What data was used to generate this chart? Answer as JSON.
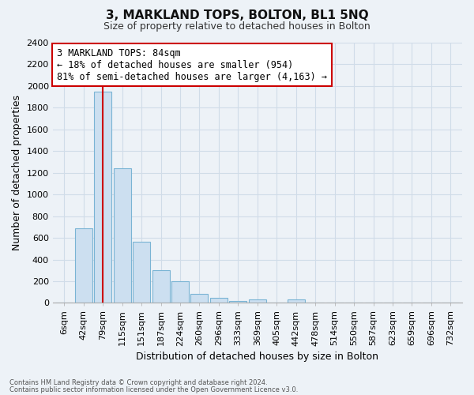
{
  "title": "3, MARKLAND TOPS, BOLTON, BL1 5NQ",
  "subtitle": "Size of property relative to detached houses in Bolton",
  "xlabel": "Distribution of detached houses by size in Bolton",
  "ylabel": "Number of detached properties",
  "bar_color": "#ccdff0",
  "bar_edge_color": "#7ab4d4",
  "categories": [
    "6sqm",
    "42sqm",
    "79sqm",
    "115sqm",
    "151sqm",
    "187sqm",
    "224sqm",
    "260sqm",
    "296sqm",
    "333sqm",
    "369sqm",
    "405sqm",
    "442sqm",
    "478sqm",
    "514sqm",
    "550sqm",
    "587sqm",
    "623sqm",
    "659sqm",
    "696sqm",
    "732sqm"
  ],
  "values": [
    0,
    690,
    1950,
    1240,
    565,
    300,
    200,
    80,
    47,
    18,
    35,
    5,
    30,
    0,
    0,
    0,
    0,
    0,
    0,
    0,
    0
  ],
  "ylim": [
    0,
    2400
  ],
  "yticks": [
    0,
    200,
    400,
    600,
    800,
    1000,
    1200,
    1400,
    1600,
    1800,
    2000,
    2200,
    2400
  ],
  "vline_x": 2,
  "vline_color": "#cc0000",
  "annotation_line1": "3 MARKLAND TOPS: 84sqm",
  "annotation_line2": "← 18% of detached houses are smaller (954)",
  "annotation_line3": "81% of semi-detached houses are larger (4,163) →",
  "annotation_box_color": "#ffffff",
  "annotation_box_edge": "#cc0000",
  "footer_line1": "Contains HM Land Registry data © Crown copyright and database right 2024.",
  "footer_line2": "Contains public sector information licensed under the Open Government Licence v3.0.",
  "bg_color": "#edf2f7",
  "plot_bg_color": "#edf2f7",
  "grid_color": "#d0dce8",
  "title_fontsize": 11,
  "subtitle_fontsize": 9,
  "axis_label_fontsize": 9,
  "tick_fontsize": 8
}
